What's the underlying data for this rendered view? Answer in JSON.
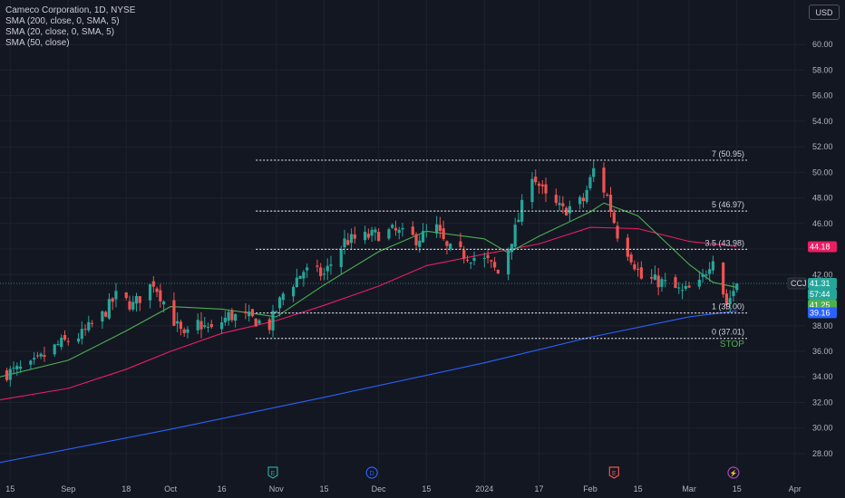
{
  "legend": {
    "symbol_line": "Cameco Corporation, 1D, NYSE",
    "indicators": [
      "SMA (200, close, 0, SMA, 5)",
      "SMA (20, close, 0, SMA, 5)",
      "SMA (50, close)"
    ]
  },
  "currency_button": "USD",
  "colors": {
    "background": "#131722",
    "up": "#26a69a",
    "down": "#ef5350",
    "sma200": "#2962ff",
    "sma20": "#4caf50",
    "sma50": "#e91e63",
    "grid": "#1e222d",
    "axis_text": "#b2b5be",
    "level_line": "#d1d4dc"
  },
  "chart_data": {
    "type": "candlestick",
    "ylim": [
      27.5,
      61.5
    ],
    "y_ticks": [
      28,
      30,
      32,
      34,
      36,
      38,
      40,
      42,
      44,
      46,
      48,
      50,
      52,
      54,
      56,
      58,
      60
    ],
    "x_range": [
      "2023-08-12",
      "2024-04-04"
    ],
    "x_ticks": [
      {
        "label": "15",
        "date": "2023-08-15"
      },
      {
        "label": "Sep",
        "date": "2023-09-01"
      },
      {
        "label": "18",
        "date": "2023-09-18"
      },
      {
        "label": "Oct",
        "date": "2023-10-01"
      },
      {
        "label": "16",
        "date": "2023-10-16"
      },
      {
        "label": "Nov",
        "date": "2023-11-01"
      },
      {
        "label": "15",
        "date": "2023-11-15"
      },
      {
        "label": "Dec",
        "date": "2023-12-01"
      },
      {
        "label": "15",
        "date": "2023-12-15"
      },
      {
        "label": "2024",
        "date": "2024-01-01"
      },
      {
        "label": "17",
        "date": "2024-01-17"
      },
      {
        "label": "Feb",
        "date": "2024-02-01"
      },
      {
        "label": "15",
        "date": "2024-02-15"
      },
      {
        "label": "Mar",
        "date": "2024-03-01"
      },
      {
        "label": "15",
        "date": "2024-03-15"
      },
      {
        "label": "Apr",
        "date": "2024-04-01"
      }
    ],
    "keypoints": [
      {
        "date": "2023-08-14",
        "close": 34.3
      },
      {
        "date": "2023-08-21",
        "close": 34.8
      },
      {
        "date": "2023-08-29",
        "close": 36.5
      },
      {
        "date": "2023-09-05",
        "close": 37.3
      },
      {
        "date": "2023-09-11",
        "close": 38.8
      },
      {
        "date": "2023-09-15",
        "close": 40.3
      },
      {
        "date": "2023-09-20",
        "close": 39.6
      },
      {
        "date": "2023-09-26",
        "close": 41.4
      },
      {
        "date": "2023-10-02",
        "close": 38.4
      },
      {
        "date": "2023-10-05",
        "close": 37.0
      },
      {
        "date": "2023-10-09",
        "close": 38.2
      },
      {
        "date": "2023-10-13",
        "close": 37.6
      },
      {
        "date": "2023-10-18",
        "close": 38.8
      },
      {
        "date": "2023-10-24",
        "close": 38.6
      },
      {
        "date": "2023-10-30",
        "close": 38.0
      },
      {
        "date": "2023-11-03",
        "close": 40.5
      },
      {
        "date": "2023-11-09",
        "close": 42.3
      },
      {
        "date": "2023-11-15",
        "close": 42.0
      },
      {
        "date": "2023-11-21",
        "close": 44.6
      },
      {
        "date": "2023-11-28",
        "close": 45.0
      },
      {
        "date": "2023-12-05",
        "close": 45.4
      },
      {
        "date": "2023-12-12",
        "close": 44.8
      },
      {
        "date": "2023-12-18",
        "close": 45.6
      },
      {
        "date": "2023-12-21",
        "close": 44.0
      },
      {
        "date": "2023-12-27",
        "close": 43.5
      },
      {
        "date": "2024-01-02",
        "close": 43.0
      },
      {
        "date": "2024-01-05",
        "close": 42.1
      },
      {
        "date": "2024-01-10",
        "close": 45.5
      },
      {
        "date": "2024-01-15",
        "close": 50.0
      },
      {
        "date": "2024-01-19",
        "close": 48.0
      },
      {
        "date": "2024-01-24",
        "close": 47.0
      },
      {
        "date": "2024-01-30",
        "close": 47.8
      },
      {
        "date": "2024-02-02",
        "close": 50.2
      },
      {
        "date": "2024-02-06",
        "close": 48.1
      },
      {
        "date": "2024-02-09",
        "close": 45.2
      },
      {
        "date": "2024-02-13",
        "close": 43.4
      },
      {
        "date": "2024-02-16",
        "close": 41.7
      },
      {
        "date": "2024-02-22",
        "close": 41.4
      },
      {
        "date": "2024-02-28",
        "close": 40.6
      },
      {
        "date": "2024-03-04",
        "close": 41.2
      },
      {
        "date": "2024-03-08",
        "close": 43.5
      },
      {
        "date": "2024-03-12",
        "close": 39.7
      },
      {
        "date": "2024-03-15",
        "close": 41.3
      }
    ],
    "sma20": [
      {
        "date": "2023-08-12",
        "value": 34.0
      },
      {
        "date": "2023-09-01",
        "value": 35.3
      },
      {
        "date": "2023-09-18",
        "value": 37.6
      },
      {
        "date": "2023-10-01",
        "value": 39.5
      },
      {
        "date": "2023-10-16",
        "value": 39.3
      },
      {
        "date": "2023-11-01",
        "value": 38.7
      },
      {
        "date": "2023-11-15",
        "value": 41.2
      },
      {
        "date": "2023-12-01",
        "value": 43.8
      },
      {
        "date": "2023-12-15",
        "value": 45.4
      },
      {
        "date": "2024-01-01",
        "value": 44.8
      },
      {
        "date": "2024-01-08",
        "value": 43.7
      },
      {
        "date": "2024-01-17",
        "value": 45.0
      },
      {
        "date": "2024-02-01",
        "value": 46.9
      },
      {
        "date": "2024-02-05",
        "value": 47.6
      },
      {
        "date": "2024-02-15",
        "value": 46.6
      },
      {
        "date": "2024-03-01",
        "value": 42.8
      },
      {
        "date": "2024-03-08",
        "value": 41.4
      },
      {
        "date": "2024-03-15",
        "value": 41.0
      }
    ],
    "sma50": [
      {
        "date": "2023-08-12",
        "value": 32.2
      },
      {
        "date": "2023-09-01",
        "value": 33.1
      },
      {
        "date": "2023-09-18",
        "value": 34.6
      },
      {
        "date": "2023-10-01",
        "value": 36.0
      },
      {
        "date": "2023-10-16",
        "value": 37.4
      },
      {
        "date": "2023-11-01",
        "value": 38.4
      },
      {
        "date": "2023-11-15",
        "value": 39.6
      },
      {
        "date": "2023-12-01",
        "value": 41.1
      },
      {
        "date": "2023-12-15",
        "value": 42.7
      },
      {
        "date": "2024-01-01",
        "value": 43.6
      },
      {
        "date": "2024-01-17",
        "value": 44.4
      },
      {
        "date": "2024-02-01",
        "value": 45.7
      },
      {
        "date": "2024-02-15",
        "value": 45.6
      },
      {
        "date": "2024-03-01",
        "value": 44.6
      },
      {
        "date": "2024-03-15",
        "value": 44.2
      }
    ],
    "sma200": [
      {
        "date": "2023-08-12",
        "value": 27.3
      },
      {
        "date": "2023-10-01",
        "value": 29.9
      },
      {
        "date": "2023-11-15",
        "value": 32.4
      },
      {
        "date": "2024-01-01",
        "value": 35.1
      },
      {
        "date": "2024-02-01",
        "value": 37.1
      },
      {
        "date": "2024-03-01",
        "value": 38.7
      },
      {
        "date": "2024-03-15",
        "value": 39.16
      }
    ],
    "levels": [
      {
        "label": "7 (50.95)",
        "value": 50.95
      },
      {
        "label": "5 (46.97)",
        "value": 46.97
      },
      {
        "label": "3.5 (43.98)",
        "value": 43.98
      },
      {
        "label": "1 (39.00)",
        "value": 39.0
      },
      {
        "label": "0 (37.01)",
        "value": 37.01
      }
    ],
    "levels_start_date": "2023-10-26",
    "levels_end_date": "2024-03-18",
    "stop_label": {
      "text": "STOP",
      "date": "2024-03-10",
      "value": 36.35
    },
    "price_labels": [
      {
        "text": "CCJ",
        "type": "symbol",
        "value": 41.31
      },
      {
        "text": "41.31",
        "type": "last",
        "value": 41.31,
        "color": "#26a69a"
      },
      {
        "text": "57:44",
        "type": "countdown",
        "value": 41.31,
        "color": "#26a69a"
      },
      {
        "text": "41.25",
        "type": "sma20",
        "value": 41.25,
        "color": "#4caf50"
      },
      {
        "text": "39.16",
        "type": "sma200",
        "value": 39.16,
        "color": "#2962ff"
      },
      {
        "text": "44.18",
        "type": "sma50",
        "value": 44.18,
        "color": "#e91e63"
      }
    ],
    "events": [
      {
        "letter": "E",
        "date": "2023-10-31",
        "color": "#26a69a",
        "icon": "earnings-icon"
      },
      {
        "letter": "D",
        "date": "2023-11-29",
        "color": "#2962ff",
        "icon": "dividend-icon"
      },
      {
        "letter": "E",
        "date": "2024-02-08",
        "color": "#ef5350",
        "icon": "earnings-icon"
      },
      {
        "letter": "⚡",
        "date": "2024-03-14",
        "color": "#ab47bc",
        "icon": "lightning-icon"
      }
    ]
  }
}
